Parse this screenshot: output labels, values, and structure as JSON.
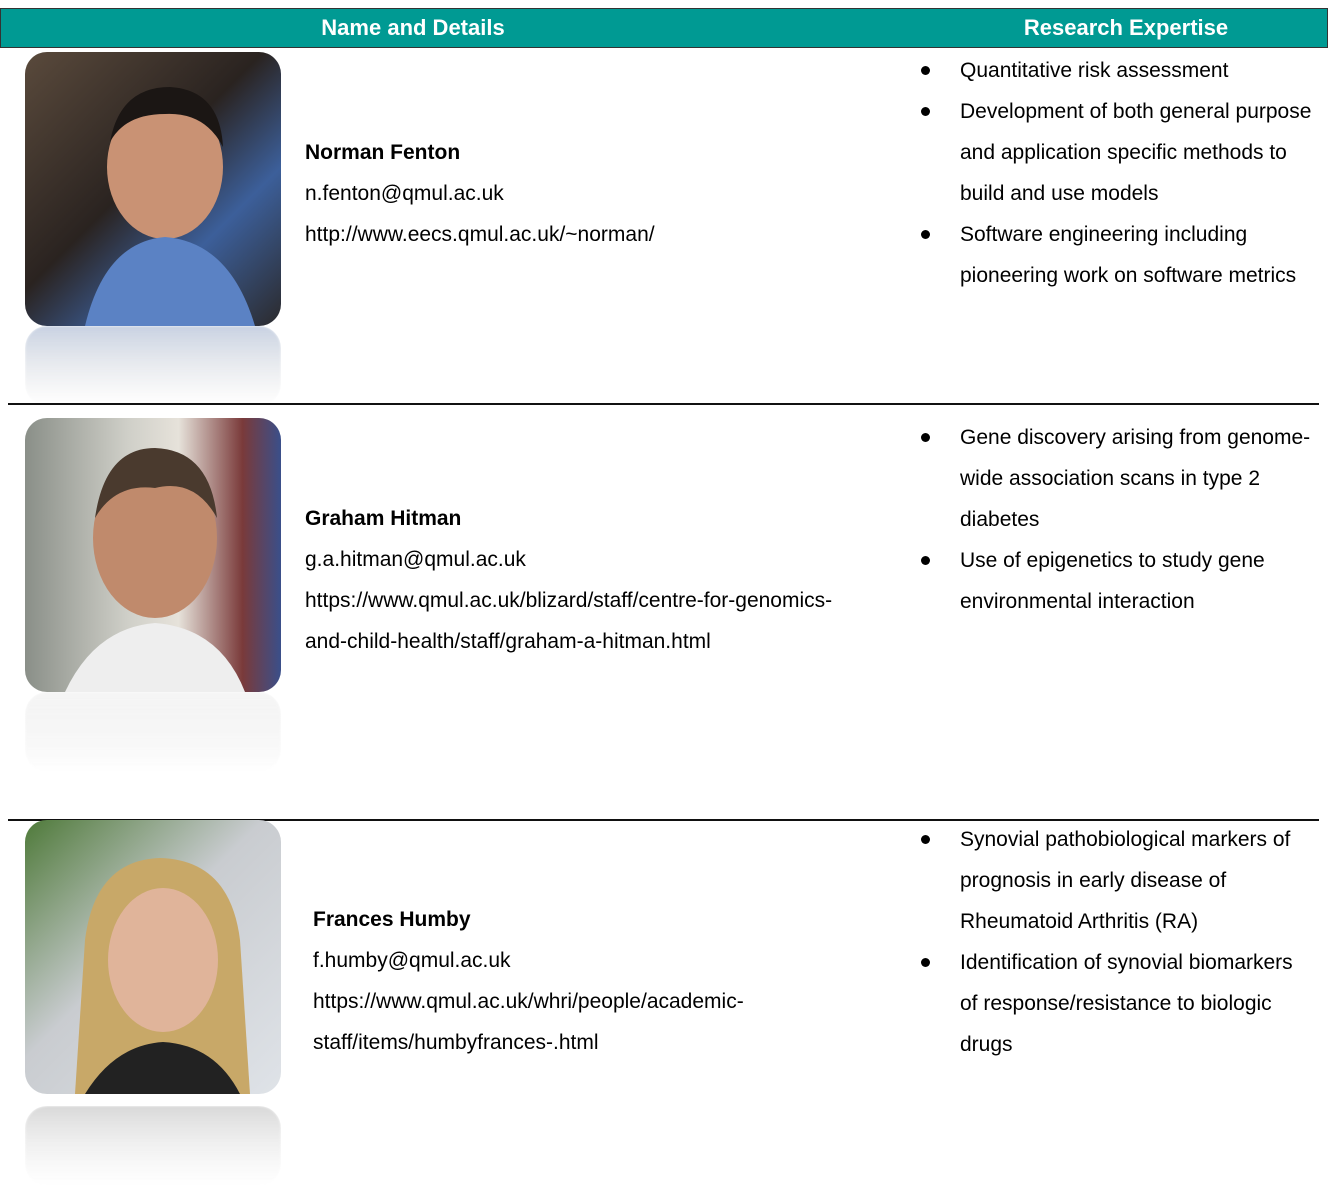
{
  "table": {
    "columns": [
      "Name and Details",
      "Research Expertise"
    ],
    "rows": [
      {
        "name": "Norman Fenton",
        "email": "n.fenton@qmul.ac.uk",
        "url": "http://www.eecs.qmul.ac.uk/~norman/",
        "expertise": [
          "Quantitative risk assessment",
          "Development of both general purpose and application specific methods to build and use models",
          "Software engineering including pioneering work on software metrics"
        ]
      },
      {
        "name": "Graham Hitman",
        "email": "g.a.hitman@qmul.ac.uk",
        "url": "https://www.qmul.ac.uk/blizard/staff/centre-for-genomics-and-child-health/staff/graham-a-hitman.html",
        "expertise": [
          "Gene discovery arising from genome-wide association scans in type 2 diabetes",
          "Use of epigenetics to study gene environmental interaction"
        ]
      },
      {
        "name": "Frances Humby",
        "email": "f.humby@qmul.ac.uk",
        "url": "https://www.qmul.ac.uk/whri/people/academic-staff/items/humbyfrances-.html",
        "expertise": [
          "Synovial pathobiological markers of prognosis in early disease of Rheumatoid Arthritis (RA)",
          "Identification of synovial biomarkers of response/resistance to biologic drugs"
        ]
      }
    ]
  }
}
